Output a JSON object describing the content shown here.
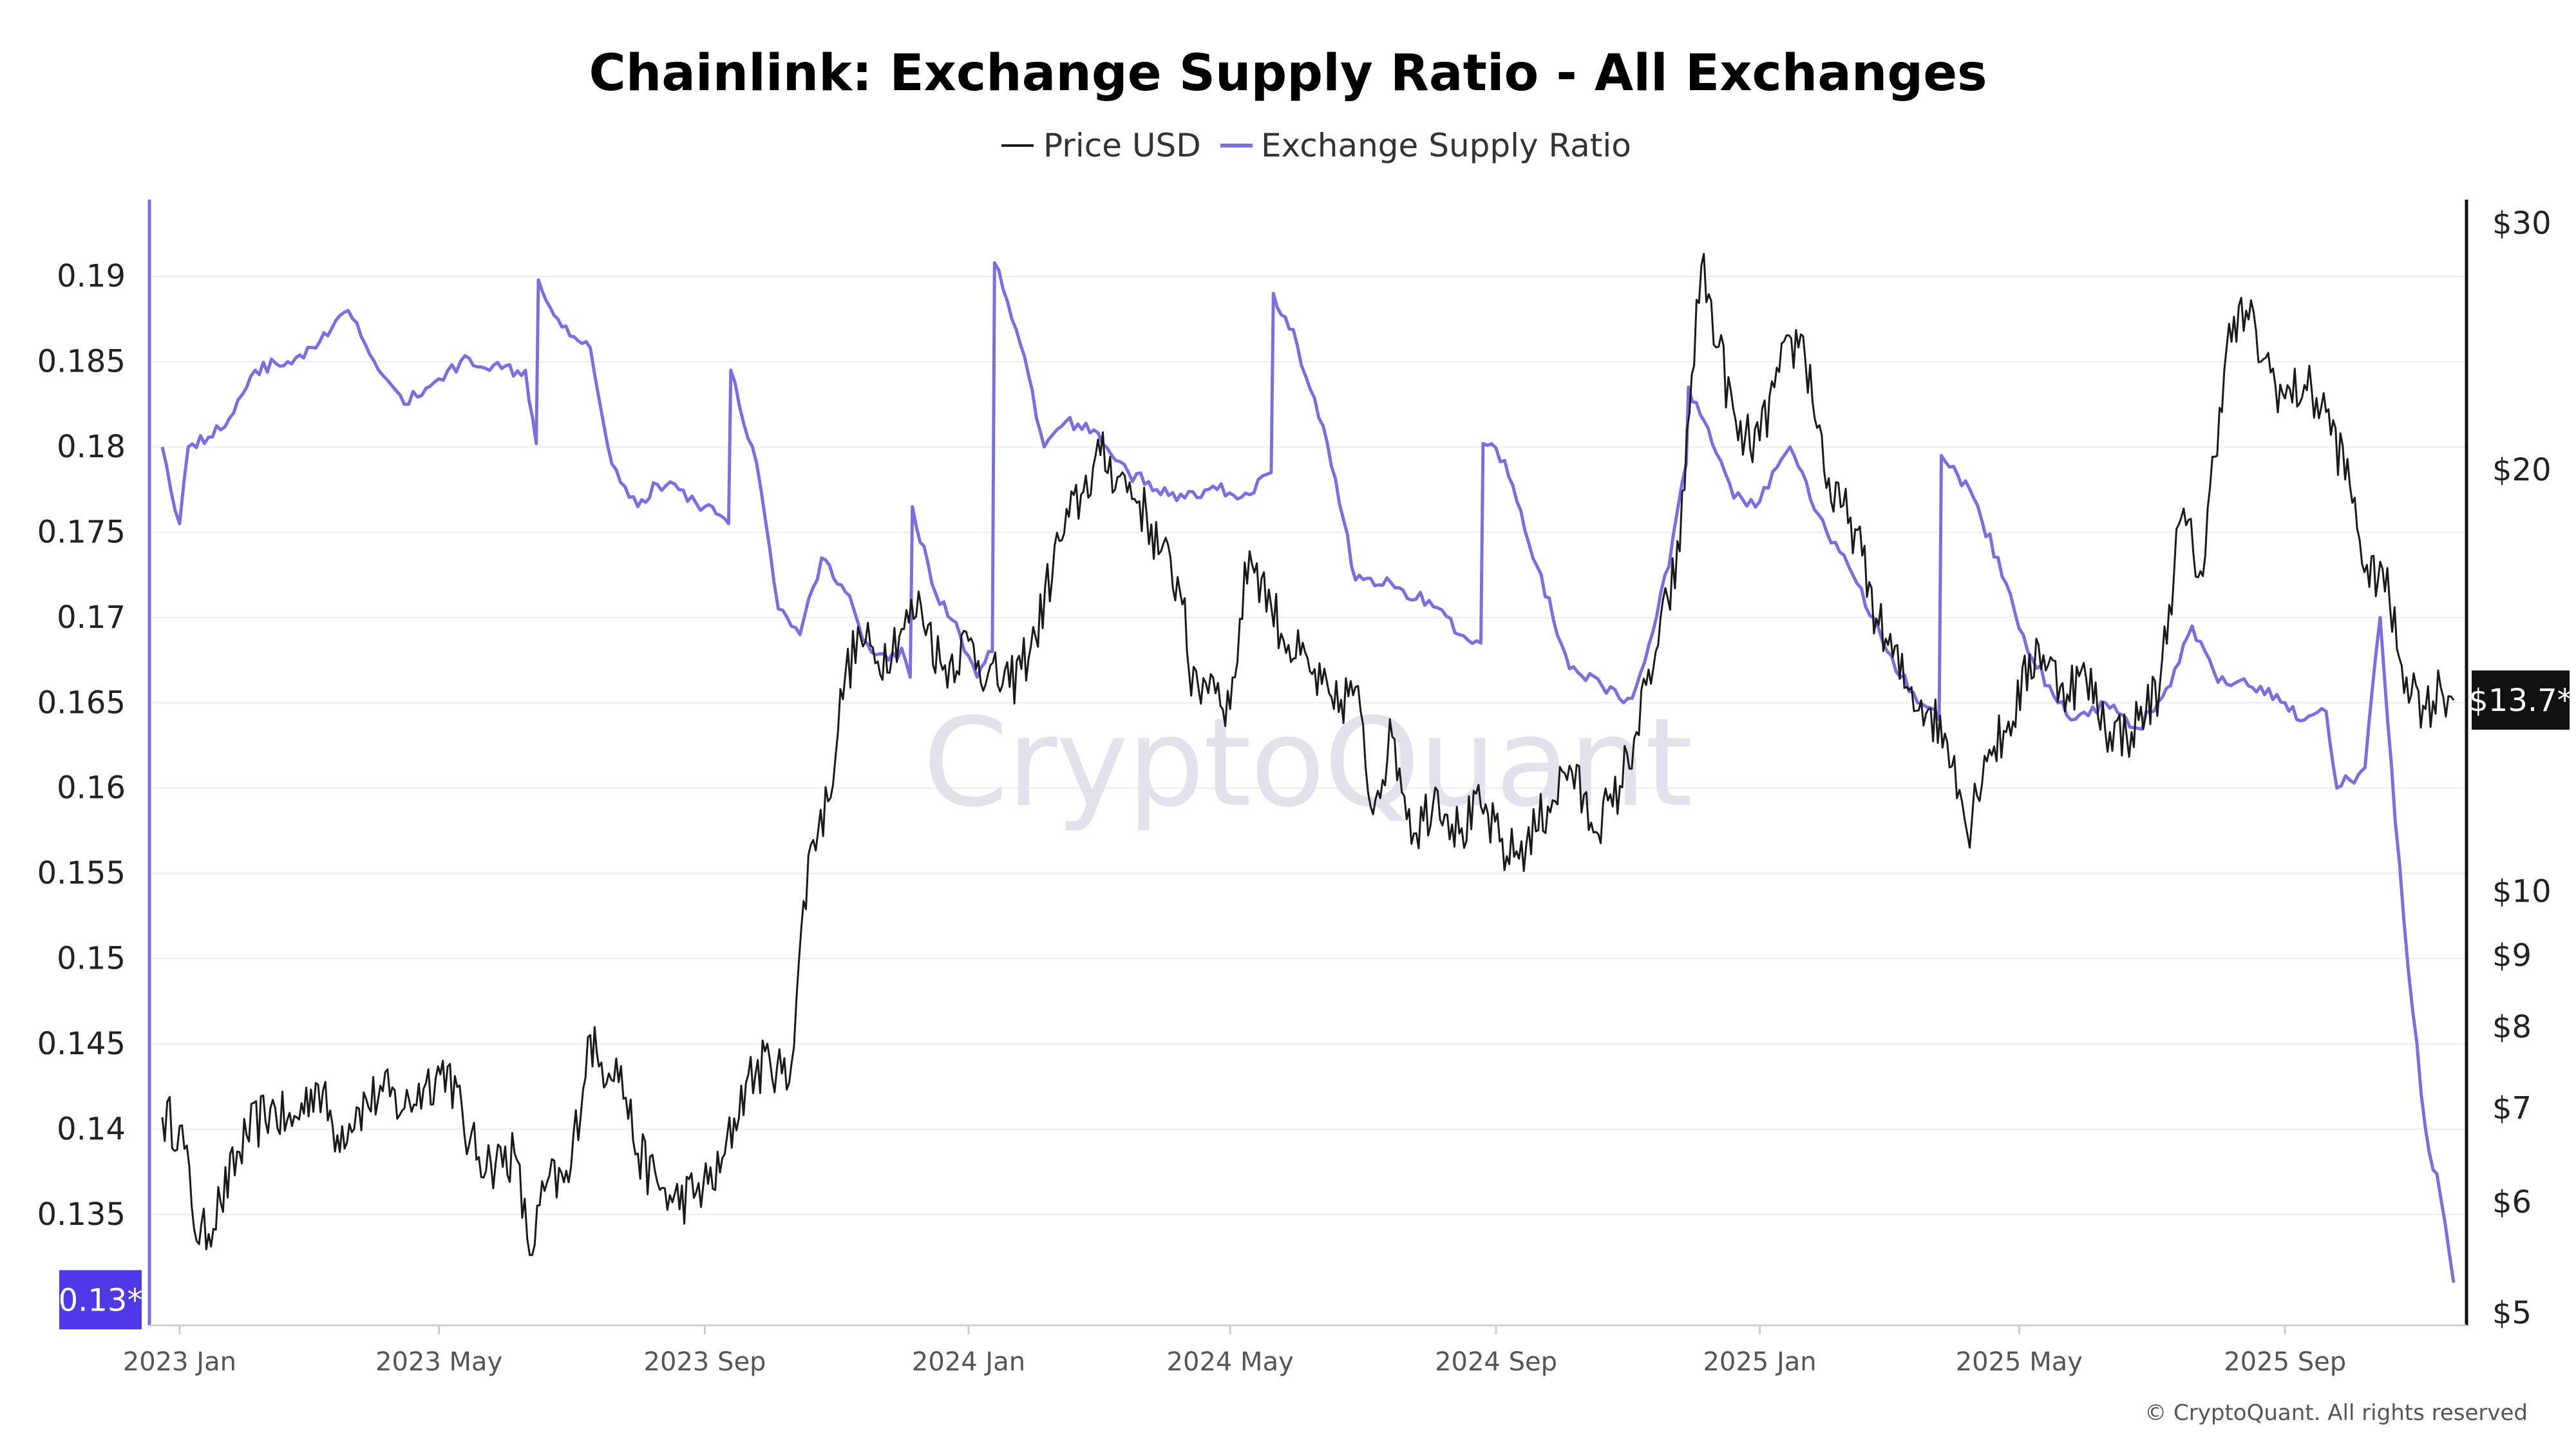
{
  "chart_data": {
    "type": "line",
    "title": "Chainlink: Exchange Supply Ratio - All Exchanges",
    "legend": {
      "placement": "top-center",
      "entries": [
        "Price USD",
        "Exchange Supply Ratio"
      ]
    },
    "colors": {
      "price": "#1a1a1a",
      "ratio": "#7b6ee0",
      "ratio_badge": "#4f38e8",
      "price_badge": "#111111",
      "gridline": "#ececec"
    },
    "x_ticks": [
      "2023 Jan",
      "2023 May",
      "2023 Sep",
      "2024 Jan",
      "2024 May",
      "2024 Sep",
      "2025 Jan",
      "2025 May",
      "2025 Sep"
    ],
    "x_tick_dates": [
      "2023-01-01",
      "2023-05-01",
      "2023-09-01",
      "2024-01-01",
      "2024-05-01",
      "2024-09-01",
      "2025-01-01",
      "2025-05-01",
      "2025-09-01"
    ],
    "x_range": [
      "2022-12-24",
      "2025-11-18"
    ],
    "left_axis": {
      "series": "Exchange Supply Ratio",
      "range": [
        0.1285,
        0.1945
      ],
      "ticks": [
        0.135,
        0.14,
        0.145,
        0.15,
        0.155,
        0.16,
        0.165,
        0.17,
        0.175,
        0.18,
        0.185,
        0.19
      ],
      "tick_labels": [
        "0.135",
        "0.14",
        "0.145",
        "0.15",
        "0.155",
        "0.16",
        "0.165",
        "0.17",
        "0.175",
        "0.18",
        "0.185",
        "0.19"
      ],
      "current_label": "0.13*",
      "current_value": 0.13
    },
    "right_axis": {
      "series": "Price USD",
      "scale": "log",
      "range": [
        4.9,
        31.2
      ],
      "ticks": [
        5,
        6,
        7,
        8,
        9,
        10,
        20,
        30
      ],
      "tick_labels": [
        "$5",
        "$6",
        "$7",
        "$8",
        "$9",
        "$10",
        "$20",
        "$30"
      ],
      "current_label": "$13.7*",
      "current_value": 13.7
    },
    "grid": true,
    "series": [
      {
        "name": "Price USD",
        "axis": "right",
        "x": [
          "2022-12-24",
          "2023-01-01",
          "2023-01-10",
          "2023-01-20",
          "2023-02-01",
          "2023-02-12",
          "2023-02-22",
          "2023-03-05",
          "2023-03-15",
          "2023-03-25",
          "2023-04-05",
          "2023-04-15",
          "2023-04-25",
          "2023-05-05",
          "2023-05-15",
          "2023-05-25",
          "2023-06-05",
          "2023-06-12",
          "2023-06-20",
          "2023-06-30",
          "2023-07-10",
          "2023-07-14",
          "2023-07-22",
          "2023-08-01",
          "2023-08-10",
          "2023-08-17",
          "2023-08-28",
          "2023-09-08",
          "2023-09-20",
          "2023-10-01",
          "2023-10-10",
          "2023-10-20",
          "2023-10-28",
          "2023-11-05",
          "2023-11-12",
          "2023-11-20",
          "2023-12-01",
          "2023-12-10",
          "2023-12-20",
          "2024-01-01",
          "2024-01-10",
          "2024-01-20",
          "2024-02-01",
          "2024-02-12",
          "2024-02-22",
          "2024-03-02",
          "2024-03-11",
          "2024-03-20",
          "2024-03-30",
          "2024-04-10",
          "2024-04-13",
          "2024-04-22",
          "2024-05-01",
          "2024-05-10",
          "2024-05-20",
          "2024-05-28",
          "2024-06-08",
          "2024-06-18",
          "2024-06-28",
          "2024-07-05",
          "2024-07-15",
          "2024-07-25",
          "2024-08-05",
          "2024-08-15",
          "2024-08-25",
          "2024-09-06",
          "2024-09-15",
          "2024-09-25",
          "2024-10-05",
          "2024-10-15",
          "2024-10-25",
          "2024-11-05",
          "2024-11-15",
          "2024-11-25",
          "2024-12-05",
          "2024-12-13",
          "2024-12-22",
          "2025-01-01",
          "2025-01-10",
          "2025-01-20",
          "2025-02-03",
          "2025-02-12",
          "2025-02-25",
          "2025-03-10",
          "2025-03-20",
          "2025-04-01",
          "2025-04-07",
          "2025-04-15",
          "2025-04-25",
          "2025-05-10",
          "2025-05-20",
          "2025-06-01",
          "2025-06-12",
          "2025-06-22",
          "2025-07-05",
          "2025-07-15",
          "2025-07-25",
          "2025-08-05",
          "2025-08-14",
          "2025-08-22",
          "2025-09-01",
          "2025-09-10",
          "2025-09-20",
          "2025-10-01",
          "2025-10-10",
          "2025-10-15",
          "2025-10-25",
          "2025-11-05",
          "2025-11-12",
          "2025-11-18"
        ],
        "values": [
          6.9,
          6.8,
          5.6,
          6.0,
          6.7,
          7.0,
          6.8,
          7.3,
          6.7,
          7.0,
          7.2,
          7.0,
          7.3,
          7.5,
          6.6,
          6.4,
          6.5,
          5.5,
          6.2,
          6.2,
          7.9,
          7.5,
          7.6,
          6.5,
          6.2,
          6.0,
          6.1,
          6.3,
          7.3,
          7.6,
          7.3,
          10.8,
          11.6,
          14.3,
          15.2,
          14.6,
          15.4,
          16.0,
          14.4,
          15.1,
          14.3,
          14.0,
          15.2,
          17.8,
          19.2,
          20.5,
          19.8,
          19.0,
          17.5,
          16.2,
          13.8,
          14.3,
          13.5,
          17.5,
          16.0,
          15.0,
          14.3,
          13.5,
          14.0,
          11.5,
          12.9,
          11.0,
          11.8,
          11.0,
          11.5,
          10.6,
          10.8,
          11.5,
          12.3,
          11.2,
          11.5,
          13.0,
          15.0,
          17.5,
          28.0,
          24.5,
          21.0,
          21.0,
          23.5,
          25.0,
          19.0,
          18.5,
          15.5,
          14.0,
          13.5,
          12.5,
          11.0,
          12.5,
          13.0,
          15.0,
          14.0,
          14.2,
          13.0,
          13.0,
          14.0,
          18.5,
          16.8,
          24.5,
          26.0,
          24.0,
          22.5,
          23.0,
          22.0,
          19.5,
          16.5,
          17.2,
          14.5,
          13.5,
          14.0,
          13.7
        ]
      },
      {
        "name": "Exchange Supply Ratio",
        "axis": "left",
        "x": [
          "2022-12-24",
          "2023-01-01",
          "2023-01-05",
          "2023-01-20",
          "2023-02-05",
          "2023-02-20",
          "2023-03-05",
          "2023-03-20",
          "2023-03-28",
          "2023-04-05",
          "2023-04-15",
          "2023-05-01",
          "2023-05-15",
          "2023-05-30",
          "2023-06-10",
          "2023-06-15",
          "2023-06-16",
          "2023-06-25",
          "2023-07-10",
          "2023-07-20",
          "2023-08-01",
          "2023-08-10",
          "2023-08-20",
          "2023-09-01",
          "2023-09-08",
          "2023-09-12",
          "2023-09-13",
          "2023-09-25",
          "2023-10-05",
          "2023-10-15",
          "2023-10-25",
          "2023-11-05",
          "2023-11-15",
          "2023-11-25",
          "2023-12-01",
          "2023-12-05",
          "2023-12-06",
          "2023-12-15",
          "2023-12-28",
          "2024-01-05",
          "2024-01-12",
          "2024-01-13",
          "2024-01-25",
          "2024-02-05",
          "2024-02-15",
          "2024-02-28",
          "2024-03-15",
          "2024-03-28",
          "2024-04-10",
          "2024-04-25",
          "2024-05-10",
          "2024-05-20",
          "2024-05-21",
          "2024-06-01",
          "2024-06-15",
          "2024-06-28",
          "2024-07-05",
          "2024-07-20",
          "2024-08-01",
          "2024-08-15",
          "2024-08-25",
          "2024-08-26",
          "2024-09-05",
          "2024-09-20",
          "2024-10-05",
          "2024-10-20",
          "2024-10-30",
          "2024-11-05",
          "2024-11-20",
          "2024-11-28",
          "2024-11-29",
          "2024-12-10",
          "2024-12-20",
          "2025-01-01",
          "2025-01-15",
          "2025-02-01",
          "2025-02-15",
          "2025-03-01",
          "2025-03-15",
          "2025-03-25",
          "2025-03-26",
          "2025-04-10",
          "2025-04-25",
          "2025-05-05",
          "2025-05-15",
          "2025-05-25",
          "2025-06-10",
          "2025-06-25",
          "2025-07-10",
          "2025-07-20",
          "2025-08-01",
          "2025-08-15",
          "2025-09-01",
          "2025-09-10",
          "2025-09-20",
          "2025-09-25",
          "2025-10-05",
          "2025-10-08",
          "2025-10-15",
          "2025-10-22",
          "2025-10-30",
          "2025-11-05",
          "2025-11-12",
          "2025-11-18"
        ],
        "values": [
          0.18,
          0.1755,
          0.18,
          0.181,
          0.1845,
          0.185,
          0.1858,
          0.188,
          0.186,
          0.1842,
          0.1825,
          0.184,
          0.1852,
          0.1846,
          0.1845,
          0.1802,
          0.1898,
          0.1875,
          0.1858,
          0.179,
          0.1765,
          0.1778,
          0.1775,
          0.1765,
          0.176,
          0.1755,
          0.1845,
          0.179,
          0.1705,
          0.169,
          0.1735,
          0.1715,
          0.1685,
          0.1675,
          0.1682,
          0.1665,
          0.1765,
          0.172,
          0.169,
          0.1665,
          0.168,
          0.1908,
          0.186,
          0.18,
          0.1815,
          0.181,
          0.1785,
          0.1775,
          0.177,
          0.1775,
          0.1772,
          0.1785,
          0.189,
          0.186,
          0.1802,
          0.1722,
          0.1723,
          0.1716,
          0.171,
          0.169,
          0.1685,
          0.1802,
          0.1792,
          0.173,
          0.167,
          0.166,
          0.165,
          0.166,
          0.173,
          0.179,
          0.1835,
          0.1802,
          0.177,
          0.1768,
          0.18,
          0.175,
          0.172,
          0.168,
          0.165,
          0.164,
          0.1795,
          0.177,
          0.172,
          0.168,
          0.166,
          0.164,
          0.165,
          0.1635,
          0.166,
          0.1695,
          0.1662,
          0.166,
          0.165,
          0.164,
          0.1645,
          0.16,
          0.1608,
          0.1612,
          0.17,
          0.158,
          0.147,
          0.14,
          0.136,
          0.131
        ]
      }
    ]
  },
  "watermark": "CryptoQuant",
  "copyright": "© CryptoQuant. All rights reserved"
}
